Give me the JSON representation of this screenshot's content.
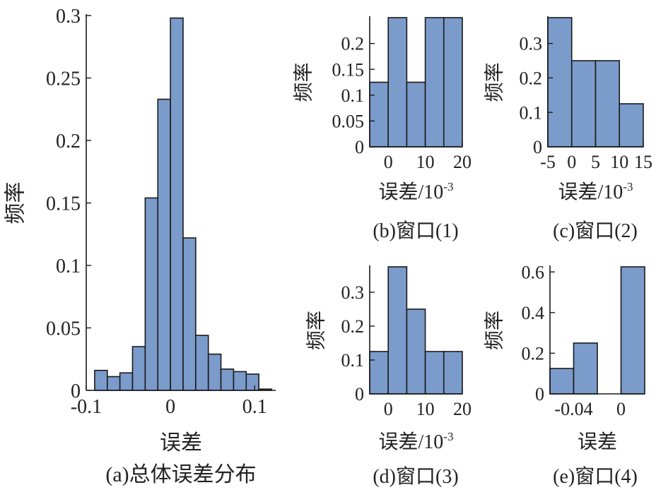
{
  "colors": {
    "bar_fill": "#7b9bcb",
    "bar_stroke": "#1a1a1a",
    "axis": "#1a1a1a",
    "text": "#222222"
  },
  "chart_data": [
    {
      "id": "a",
      "type": "bar",
      "caption": "(a)总体误差分布",
      "xlabel": "误差",
      "ylabel": "频率",
      "bin_edges": [
        -0.09,
        -0.075,
        -0.06,
        -0.045,
        -0.03,
        -0.015,
        0,
        0.015,
        0.03,
        0.045,
        0.06,
        0.075,
        0.09,
        0.105,
        0.12
      ],
      "values": [
        0.016,
        0.011,
        0.014,
        0.035,
        0.154,
        0.233,
        0.298,
        0.122,
        0.044,
        0.029,
        0.017,
        0.015,
        0.013,
        0.001
      ],
      "xlim": [
        -0.1,
        0.125
      ],
      "ylim": [
        0,
        0.3
      ],
      "xticks": [
        -0.1,
        0,
        0.1
      ],
      "xtick_labels": [
        "-0.1",
        "0",
        "0.1"
      ],
      "yticks": [
        0,
        0.05,
        0.1,
        0.15,
        0.2,
        0.25,
        0.3
      ],
      "ytick_labels": [
        "0",
        "0.05",
        "0.1",
        "0.15",
        "0.2",
        "0.25",
        "0.3"
      ]
    },
    {
      "id": "b",
      "type": "bar",
      "caption": "(b)窗口(1)",
      "xlabel": "误差/10",
      "xlabel_exp": "-3",
      "ylabel": "频率",
      "bin_edges": [
        -5,
        0,
        5,
        10,
        15,
        20
      ],
      "values": [
        0.125,
        0.25,
        0.125,
        0.25,
        0.25
      ],
      "xlim": [
        -5,
        20
      ],
      "ylim": [
        0,
        0.25
      ],
      "xticks": [
        0,
        10,
        20
      ],
      "xtick_labels": [
        "0",
        "10",
        "20"
      ],
      "yticks": [
        0,
        0.05,
        0.1,
        0.15,
        0.2
      ],
      "ytick_labels": [
        "0",
        "0.05",
        "0.1",
        "0.15",
        "0.2"
      ]
    },
    {
      "id": "c",
      "type": "bar",
      "caption": "(c)窗口(2)",
      "xlabel": "误差/10",
      "xlabel_exp": "-3",
      "ylabel": "频率",
      "bin_edges": [
        -5,
        0,
        5,
        10,
        15
      ],
      "values": [
        0.375,
        0.25,
        0.25,
        0.125
      ],
      "xlim": [
        -5,
        15
      ],
      "ylim": [
        0,
        0.375
      ],
      "xticks": [
        -5,
        0,
        5,
        10,
        15
      ],
      "xtick_labels": [
        "-5",
        "0",
        "5",
        "10",
        "15"
      ],
      "yticks": [
        0,
        0.1,
        0.2,
        0.3
      ],
      "ytick_labels": [
        "0",
        "0.1",
        "0.2",
        "0.3"
      ]
    },
    {
      "id": "d",
      "type": "bar",
      "caption": "(d)窗口(3)",
      "xlabel": "误差/10",
      "xlabel_exp": "-3",
      "ylabel": "频率",
      "bin_edges": [
        -5,
        0,
        5,
        10,
        15,
        20
      ],
      "values": [
        0.125,
        0.375,
        0.25,
        0.125,
        0.125
      ],
      "xlim": [
        -5,
        20
      ],
      "ylim": [
        0,
        0.375
      ],
      "xticks": [
        0,
        10,
        20
      ],
      "xtick_labels": [
        "0",
        "10",
        "20"
      ],
      "yticks": [
        0,
        0.1,
        0.2,
        0.3
      ],
      "ytick_labels": [
        "0",
        "0.1",
        "0.2",
        "0.3"
      ]
    },
    {
      "id": "e",
      "type": "bar",
      "caption": "(e)窗口(4)",
      "xlabel": "误差",
      "ylabel": "频率",
      "bin_edges": [
        -0.06,
        -0.04,
        -0.02,
        0,
        0.02
      ],
      "values": [
        0.125,
        0.25,
        0,
        0.625
      ],
      "xlim": [
        -0.06,
        0.02
      ],
      "ylim": [
        0,
        0.625
      ],
      "xticks": [
        -0.04,
        0
      ],
      "xtick_labels": [
        "-0.04",
        "0"
      ],
      "yticks": [
        0,
        0.2,
        0.4,
        0.6
      ],
      "ytick_labels": [
        "0",
        "0.2",
        "0.4",
        "0.6"
      ]
    }
  ]
}
